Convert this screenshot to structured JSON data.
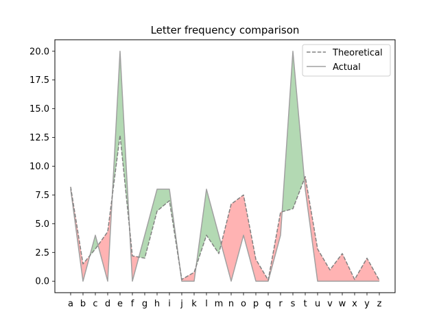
{
  "chart_data": {
    "type": "line",
    "title": "Letter frequency comparison",
    "xlabel": "",
    "ylabel": "",
    "categories": [
      "a",
      "b",
      "c",
      "d",
      "e",
      "f",
      "g",
      "h",
      "i",
      "j",
      "k",
      "l",
      "m",
      "n",
      "o",
      "p",
      "q",
      "r",
      "s",
      "t",
      "u",
      "v",
      "w",
      "x",
      "y",
      "z"
    ],
    "ylim": [
      -1.0,
      21.0
    ],
    "yticks": [
      "0.0",
      "2.5",
      "5.0",
      "7.5",
      "10.0",
      "12.5",
      "15.0",
      "17.5",
      "20.0"
    ],
    "grid": false,
    "legend_position": "top-right",
    "series": [
      {
        "name": "Theoretical",
        "style": "dashed",
        "color": "#808080",
        "values": [
          8.2,
          1.5,
          2.8,
          4.3,
          12.7,
          2.2,
          2.0,
          6.1,
          7.0,
          0.15,
          0.77,
          4.0,
          2.4,
          6.7,
          7.5,
          1.9,
          0.095,
          6.0,
          6.3,
          9.1,
          2.8,
          0.98,
          2.4,
          0.15,
          2.0,
          0.074
        ]
      },
      {
        "name": "Actual",
        "style": "solid",
        "color": "#a0a0a0",
        "values": [
          8.0,
          0.0,
          4.0,
          0.0,
          20.0,
          0.0,
          4.0,
          8.0,
          8.0,
          0.0,
          0.0,
          8.0,
          4.0,
          0.0,
          4.0,
          0.0,
          0.0,
          4.0,
          20.0,
          8.0,
          0.0,
          0.0,
          0.0,
          0.0,
          0.0,
          0.0
        ]
      }
    ],
    "fill_colors": {
      "actual_above": "#b3d9b3",
      "actual_below": "#ffb3b3"
    }
  }
}
